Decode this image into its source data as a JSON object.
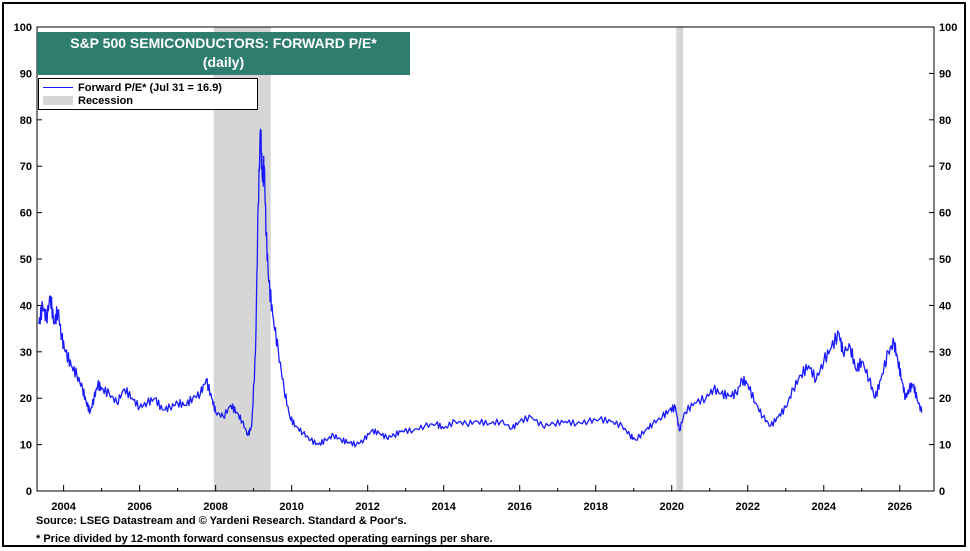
{
  "chart_data": {
    "type": "line",
    "title": "S&P 500 SEMICONDUCTORS: FORWARD P/E*",
    "subtitle": "(daily)",
    "ylim": [
      0,
      100
    ],
    "yticks": [
      0,
      10,
      20,
      30,
      40,
      50,
      60,
      70,
      80,
      90,
      100
    ],
    "xlim": [
      2003.3,
      2026.9
    ],
    "xticks": [
      2004,
      2006,
      2008,
      2010,
      2012,
      2014,
      2016,
      2018,
      2020,
      2022,
      2024,
      2026
    ],
    "legend": {
      "series_label": "Forward P/E* (Jul 31 = 16.9)",
      "recession_label": "Recession",
      "placement": "top-left"
    },
    "recessions": [
      [
        2007.95,
        2009.45
      ],
      [
        2020.12,
        2020.3
      ]
    ],
    "series": [
      {
        "name": "Forward P/E* (Jul 31 = 16.9)",
        "color": "#1a1aff",
        "points": [
          [
            2003.35,
            36
          ],
          [
            2003.45,
            40
          ],
          [
            2003.55,
            37
          ],
          [
            2003.65,
            42
          ],
          [
            2003.75,
            36
          ],
          [
            2003.85,
            39
          ],
          [
            2003.95,
            33
          ],
          [
            2004.05,
            30
          ],
          [
            2004.2,
            27
          ],
          [
            2004.35,
            25
          ],
          [
            2004.5,
            22
          ],
          [
            2004.6,
            19
          ],
          [
            2004.7,
            17
          ],
          [
            2004.8,
            20
          ],
          [
            2004.9,
            23
          ],
          [
            2005.0,
            22
          ],
          [
            2005.2,
            21
          ],
          [
            2005.4,
            19
          ],
          [
            2005.6,
            22
          ],
          [
            2005.8,
            20
          ],
          [
            2006.0,
            18
          ],
          [
            2006.2,
            19
          ],
          [
            2006.4,
            20
          ],
          [
            2006.6,
            17.5
          ],
          [
            2006.8,
            18
          ],
          [
            2007.0,
            19
          ],
          [
            2007.2,
            18.5
          ],
          [
            2007.4,
            20
          ],
          [
            2007.6,
            21
          ],
          [
            2007.75,
            24
          ],
          [
            2007.9,
            20
          ],
          [
            2008.0,
            17
          ],
          [
            2008.2,
            16
          ],
          [
            2008.4,
            18.5
          ],
          [
            2008.55,
            17
          ],
          [
            2008.7,
            15
          ],
          [
            2008.85,
            12
          ],
          [
            2008.95,
            14
          ],
          [
            2009.05,
            30
          ],
          [
            2009.12,
            62
          ],
          [
            2009.18,
            78
          ],
          [
            2009.23,
            67
          ],
          [
            2009.28,
            70
          ],
          [
            2009.33,
            55
          ],
          [
            2009.4,
            45
          ],
          [
            2009.5,
            38
          ],
          [
            2009.65,
            30
          ],
          [
            2009.8,
            22
          ],
          [
            2009.95,
            16
          ],
          [
            2010.1,
            14
          ],
          [
            2010.3,
            12.5
          ],
          [
            2010.5,
            11
          ],
          [
            2010.7,
            10
          ],
          [
            2010.9,
            11
          ],
          [
            2011.1,
            12
          ],
          [
            2011.3,
            11
          ],
          [
            2011.5,
            10.5
          ],
          [
            2011.7,
            10
          ],
          [
            2011.9,
            11
          ],
          [
            2012.1,
            13
          ],
          [
            2012.3,
            12.5
          ],
          [
            2012.5,
            11.5
          ],
          [
            2012.7,
            12
          ],
          [
            2012.9,
            13
          ],
          [
            2013.2,
            13
          ],
          [
            2013.5,
            14
          ],
          [
            2013.8,
            14.5
          ],
          [
            2014.0,
            13.5
          ],
          [
            2014.3,
            15
          ],
          [
            2014.6,
            14.5
          ],
          [
            2014.9,
            15
          ],
          [
            2015.2,
            14.5
          ],
          [
            2015.5,
            15
          ],
          [
            2015.8,
            13.5
          ],
          [
            2016.0,
            15
          ],
          [
            2016.3,
            16
          ],
          [
            2016.6,
            14
          ],
          [
            2016.9,
            14.5
          ],
          [
            2017.2,
            15
          ],
          [
            2017.5,
            14.5
          ],
          [
            2017.8,
            15
          ],
          [
            2018.1,
            15.5
          ],
          [
            2018.4,
            15
          ],
          [
            2018.7,
            14
          ],
          [
            2018.9,
            12
          ],
          [
            2019.05,
            11
          ],
          [
            2019.3,
            13
          ],
          [
            2019.5,
            14.5
          ],
          [
            2019.75,
            16
          ],
          [
            2019.95,
            17.5
          ],
          [
            2020.1,
            18
          ],
          [
            2020.2,
            13
          ],
          [
            2020.35,
            17
          ],
          [
            2020.6,
            19
          ],
          [
            2020.9,
            20
          ],
          [
            2021.1,
            22
          ],
          [
            2021.3,
            21
          ],
          [
            2021.5,
            20.5
          ],
          [
            2021.7,
            21
          ],
          [
            2021.85,
            24
          ],
          [
            2022.0,
            23
          ],
          [
            2022.2,
            19
          ],
          [
            2022.4,
            16
          ],
          [
            2022.6,
            14
          ],
          [
            2022.8,
            16
          ],
          [
            2023.0,
            18
          ],
          [
            2023.2,
            22
          ],
          [
            2023.4,
            25
          ],
          [
            2023.6,
            27
          ],
          [
            2023.8,
            24
          ],
          [
            2024.0,
            28
          ],
          [
            2024.2,
            31
          ],
          [
            2024.4,
            34
          ],
          [
            2024.5,
            30
          ],
          [
            2024.7,
            31
          ],
          [
            2024.85,
            26
          ],
          [
            2025.0,
            28
          ],
          [
            2025.2,
            24
          ],
          [
            2025.35,
            20
          ],
          [
            2025.5,
            24
          ],
          [
            2025.7,
            30
          ],
          [
            2025.85,
            32
          ],
          [
            2025.95,
            28
          ],
          [
            2026.05,
            24
          ],
          [
            2026.15,
            20
          ],
          [
            2026.25,
            22
          ],
          [
            2026.35,
            23
          ],
          [
            2026.45,
            20
          ],
          [
            2026.58,
            16.9
          ]
        ]
      }
    ]
  },
  "source_line": "Source: LSEG Datastream and © Yardeni Research. Standard & Poor's.",
  "footnote": "* Price divided by 12-month forward consensus expected operating earnings per share."
}
